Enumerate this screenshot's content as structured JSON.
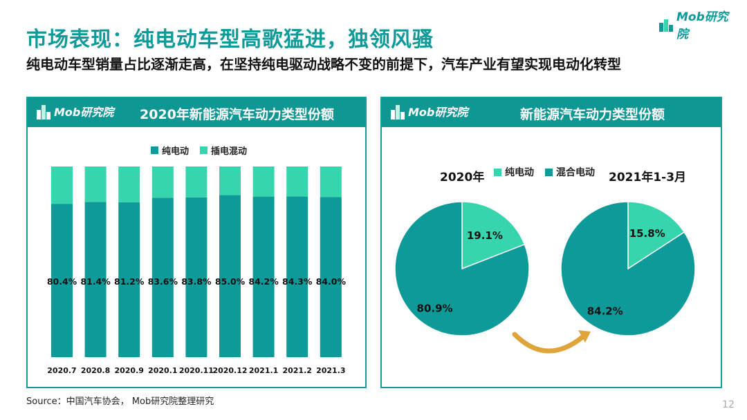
{
  "page": {
    "title": "市场表现：纯电动车型高歌猛进，独领风骚",
    "subtitle": "纯电动车型销量占比逐渐走高，在坚持纯电驱动战略不变的前提下，汽车产业有望实现电动化转型",
    "source": "Source：中国汽车协会， Mob研究院整理研究",
    "page_number": "12",
    "brand": "Mob研究院"
  },
  "colors": {
    "bev": "#0e9a98",
    "phev": "#36d5ad",
    "header": "#0f9794"
  },
  "chart_data": [
    {
      "type": "bar",
      "title": "2020年新能源汽车动力类型份额",
      "stacked": true,
      "categories": [
        "2020.7",
        "2020.8",
        "2020.9",
        "2020.1",
        "2020.11",
        "2020.12",
        "2021.1",
        "2021.2",
        "2021.3"
      ],
      "series": [
        {
          "name": "纯电动",
          "values": [
            80.4,
            81.4,
            81.2,
            83.6,
            83.8,
            85.0,
            84.2,
            84.3,
            84.0
          ],
          "labels": [
            "80.4%",
            "81.4%",
            "81.2%",
            "83.6%",
            "83.8%",
            "85.0%",
            "84.2%",
            "84.3%",
            "84.0%"
          ]
        },
        {
          "name": "插电混动",
          "values": [
            19.6,
            18.6,
            18.8,
            16.4,
            16.2,
            15.0,
            15.8,
            15.7,
            16.0
          ]
        }
      ],
      "ylim": [
        0,
        100
      ],
      "legend": "top-center"
    },
    {
      "type": "pie",
      "title": "新能源汽车动力类型份额",
      "legend_labels": [
        "纯电动",
        "混合电动"
      ],
      "pies": [
        {
          "caption": "2020年",
          "slices": [
            {
              "name": "纯电动",
              "value": 19.1,
              "label": "19.1%"
            },
            {
              "name": "混合电动",
              "value": 80.9,
              "label": "80.9%"
            }
          ]
        },
        {
          "caption": "2021年1-3月",
          "slices": [
            {
              "name": "纯电动",
              "value": 15.8,
              "label": "15.8%"
            },
            {
              "name": "混合电动",
              "value": 84.2,
              "label": "84.2%"
            }
          ]
        }
      ]
    }
  ]
}
